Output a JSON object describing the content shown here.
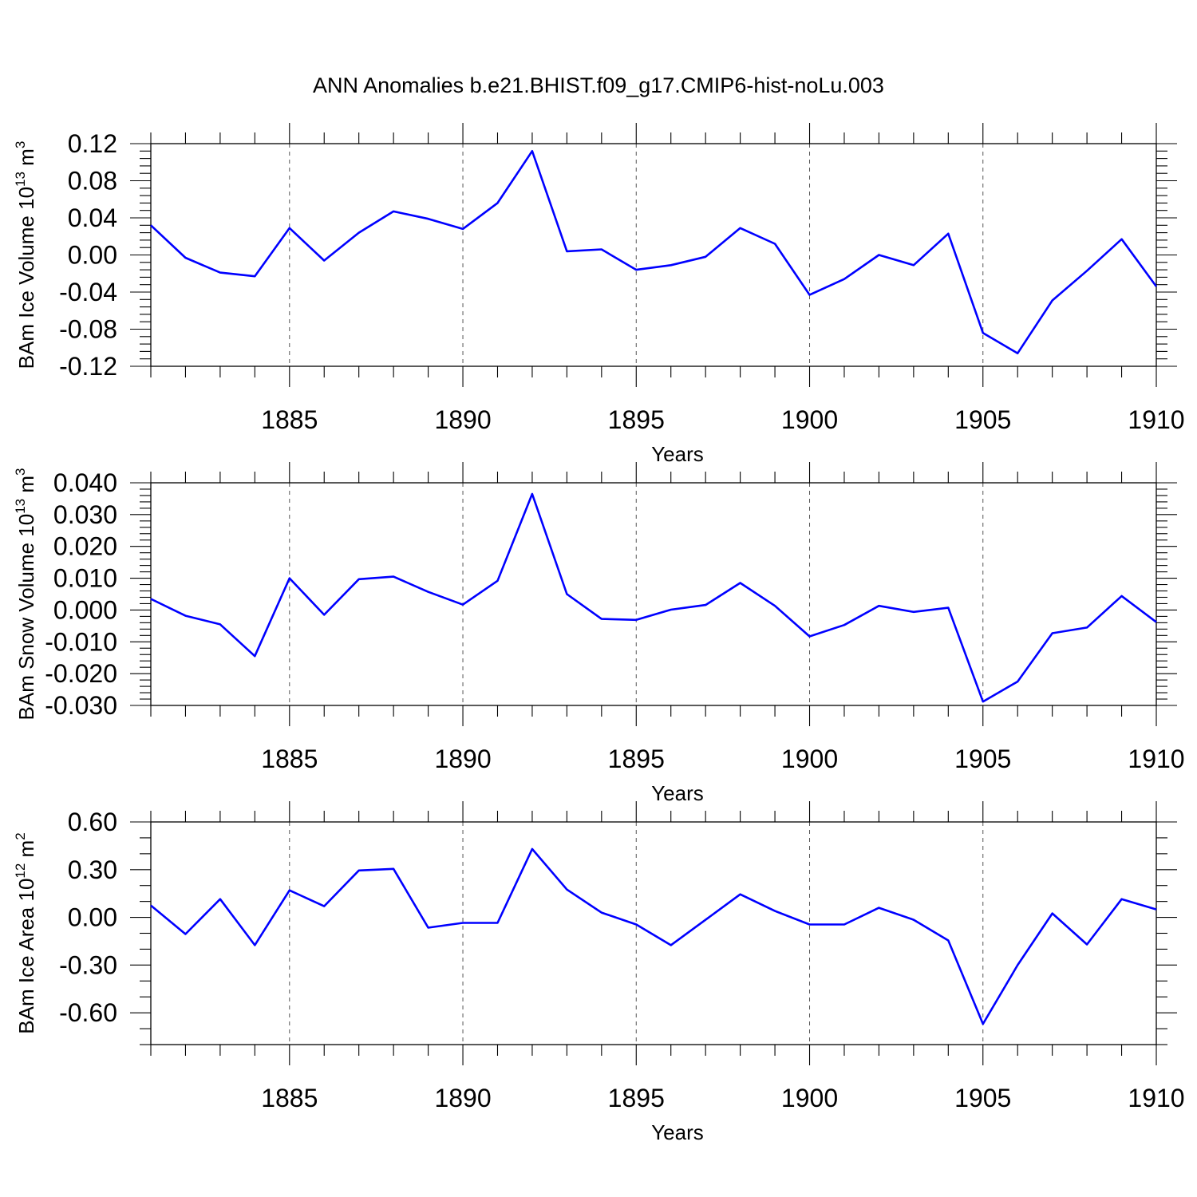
{
  "figure": {
    "title": "ANN Anomalies b.e21.BHIST.f09_g17.CMIP6-hist-noLu.003"
  },
  "style": {
    "line_color": "#0000ff",
    "grid_color": "#555555"
  },
  "chart_data": [
    {
      "type": "line",
      "ylabel": "BAm Ice Volume 10",
      "ylabel_exp": "13",
      "ylabel_unit": " m",
      "ylabel_unit_exp": "3",
      "xlabel": "Years",
      "xlim": [
        1881,
        1910
      ],
      "ylim": [
        -0.12,
        0.12
      ],
      "yticks": [
        0.12,
        0.08,
        0.04,
        0.0,
        -0.04,
        -0.08,
        -0.12
      ],
      "ytick_labels": [
        "0.12",
        "0.08",
        "0.04",
        "0.00",
        "-0.04",
        "-0.08",
        "-0.12"
      ],
      "yminor_step": 0.008,
      "xticks": [
        1885,
        1890,
        1895,
        1900,
        1905,
        1910
      ],
      "xtick_labels": [
        "1885",
        "1890",
        "1895",
        "1900",
        "1905",
        "1910"
      ],
      "grid": "vertical-dashed",
      "x": [
        1881,
        1882,
        1883,
        1884,
        1885,
        1886,
        1887,
        1888,
        1889,
        1890,
        1891,
        1892,
        1893,
        1894,
        1895,
        1896,
        1897,
        1898,
        1899,
        1900,
        1901,
        1902,
        1903,
        1904,
        1905,
        1906,
        1907,
        1908,
        1909,
        1910
      ],
      "y": [
        0.032,
        -0.003,
        -0.019,
        -0.023,
        0.029,
        -0.006,
        0.024,
        0.047,
        0.039,
        0.028,
        0.056,
        0.112,
        0.004,
        0.006,
        -0.016,
        -0.011,
        -0.002,
        0.029,
        0.012,
        -0.043,
        -0.026,
        0.0,
        -0.011,
        0.023,
        -0.084,
        -0.106,
        -0.049,
        -0.017,
        0.017,
        -0.034
      ]
    },
    {
      "type": "line",
      "ylabel": "BAm Snow Volume 10",
      "ylabel_exp": "13",
      "ylabel_unit": " m",
      "ylabel_unit_exp": "3",
      "xlabel": "Years",
      "xlim": [
        1881,
        1910
      ],
      "ylim": [
        -0.03,
        0.04
      ],
      "yticks": [
        0.04,
        0.03,
        0.02,
        0.01,
        0.0,
        -0.01,
        -0.02,
        -0.03
      ],
      "ytick_labels": [
        "0.040",
        "0.030",
        "0.020",
        "0.010",
        "0.000",
        "-0.010",
        "-0.020",
        "-0.030"
      ],
      "yminor_step": 0.002,
      "xticks": [
        1885,
        1890,
        1895,
        1900,
        1905,
        1910
      ],
      "xtick_labels": [
        "1885",
        "1890",
        "1895",
        "1900",
        "1905",
        "1910"
      ],
      "grid": "vertical-dashed",
      "x": [
        1881,
        1882,
        1883,
        1884,
        1885,
        1886,
        1887,
        1888,
        1889,
        1890,
        1891,
        1892,
        1893,
        1894,
        1895,
        1896,
        1897,
        1898,
        1899,
        1900,
        1901,
        1902,
        1903,
        1904,
        1905,
        1906,
        1907,
        1908,
        1909,
        1910
      ],
      "y": [
        0.0035,
        -0.0018,
        -0.0045,
        -0.0145,
        0.01,
        -0.0015,
        0.0097,
        0.0105,
        0.0057,
        0.0017,
        0.0092,
        0.0365,
        0.005,
        -0.0028,
        -0.0031,
        0.0001,
        0.0016,
        0.0085,
        0.0013,
        -0.0083,
        -0.0047,
        0.0013,
        -0.0006,
        0.0007,
        -0.0288,
        -0.0225,
        -0.0073,
        -0.0055,
        0.0044,
        -0.0038
      ]
    },
    {
      "type": "line",
      "ylabel": "BAm Ice Area 10",
      "ylabel_exp": "12",
      "ylabel_unit": " m",
      "ylabel_unit_exp": "2",
      "xlabel": "Years",
      "xlim": [
        1881,
        1910
      ],
      "ylim": [
        -0.8,
        0.6
      ],
      "yticks": [
        0.6,
        0.3,
        0.0,
        -0.3,
        -0.6
      ],
      "ytick_labels": [
        "0.60",
        "0.30",
        "0.00",
        "-0.30",
        "-0.60"
      ],
      "yminor_step": 0.1,
      "xticks": [
        1885,
        1890,
        1895,
        1900,
        1905,
        1910
      ],
      "xtick_labels": [
        "1885",
        "1890",
        "1895",
        "1900",
        "1905",
        "1910"
      ],
      "grid": "vertical-dashed",
      "x": [
        1881,
        1882,
        1883,
        1884,
        1885,
        1886,
        1887,
        1888,
        1889,
        1890,
        1891,
        1892,
        1893,
        1894,
        1895,
        1896,
        1897,
        1898,
        1899,
        1900,
        1901,
        1902,
        1903,
        1904,
        1905,
        1906,
        1907,
        1908,
        1909,
        1910
      ],
      "y": [
        0.075,
        -0.105,
        0.115,
        -0.175,
        0.17,
        0.07,
        0.295,
        0.305,
        -0.065,
        -0.035,
        -0.035,
        0.43,
        0.175,
        0.03,
        -0.045,
        -0.175,
        -0.015,
        0.145,
        0.04,
        -0.045,
        -0.045,
        0.06,
        -0.015,
        -0.145,
        -0.67,
        -0.3,
        0.025,
        -0.17,
        0.115,
        0.05
      ]
    }
  ]
}
